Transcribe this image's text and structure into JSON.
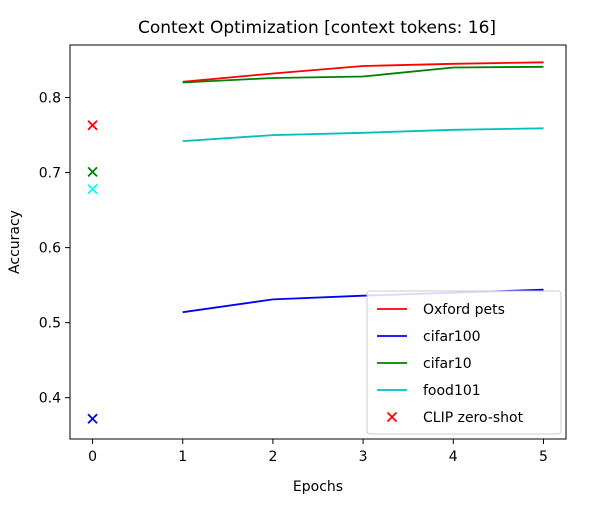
{
  "chart_data": {
    "type": "line",
    "title": "Context Optimization [context tokens: 16]",
    "xlabel": "Epochs",
    "ylabel": "Accuracy",
    "xlim": [
      -0.25,
      5.25
    ],
    "ylim": [
      0.345,
      0.87
    ],
    "xticks": [
      0,
      1,
      2,
      3,
      4,
      5
    ],
    "yticks": [
      0.4,
      0.5,
      0.6,
      0.7,
      0.8
    ],
    "x": [
      1,
      2,
      3,
      4,
      5
    ],
    "series": [
      {
        "name": "Oxford pets",
        "color": "#ff0000",
        "values": [
          0.821,
          0.832,
          0.842,
          0.845,
          0.847
        ]
      },
      {
        "name": "cifar100",
        "color": "#0000ff",
        "values": [
          0.514,
          0.531,
          0.536,
          0.54,
          0.544
        ]
      },
      {
        "name": "cifar10",
        "color": "#008000",
        "values": [
          0.82,
          0.826,
          0.828,
          0.84,
          0.841
        ]
      },
      {
        "name": "food101",
        "color": "#00bfbf",
        "values": [
          0.742,
          0.75,
          0.753,
          0.757,
          0.759
        ]
      }
    ],
    "zero_shot": {
      "name": "CLIP zero-shot",
      "marker": "x",
      "points": [
        {
          "x": 0,
          "y": 0.763,
          "color": "#ff0000"
        },
        {
          "x": 0,
          "y": 0.372,
          "color": "#0000ff"
        },
        {
          "x": 0,
          "y": 0.701,
          "color": "#008000"
        },
        {
          "x": 0,
          "y": 0.678,
          "color": "#00ffff"
        }
      ],
      "legend_color": "#ff0000"
    },
    "legend_position": "lower-right",
    "grid": false
  }
}
